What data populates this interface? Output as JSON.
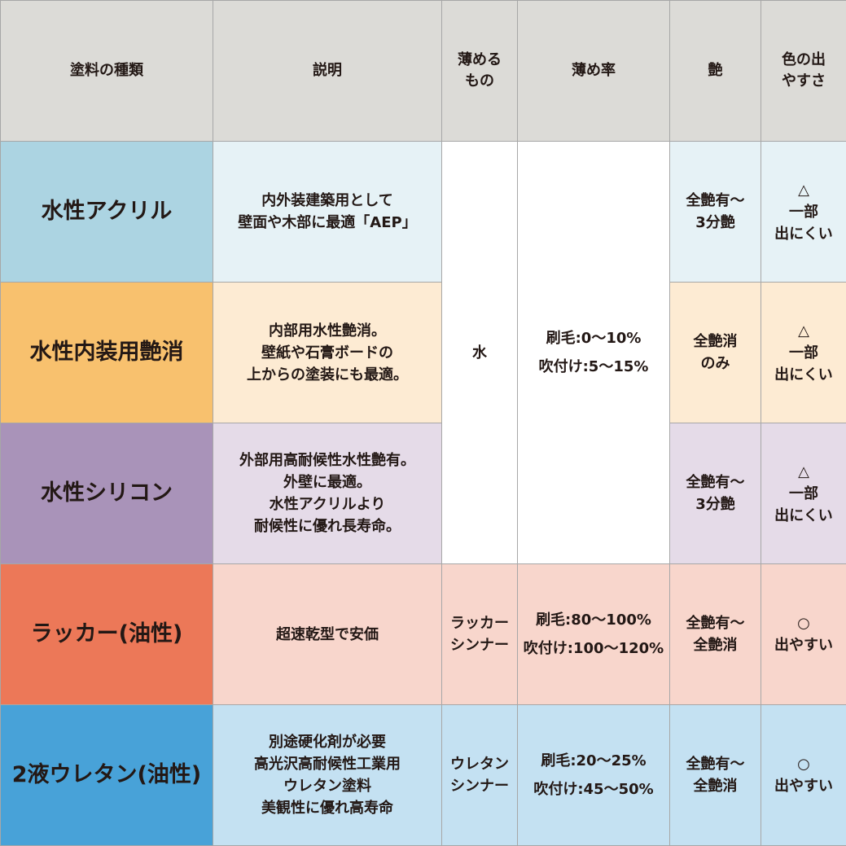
{
  "headers": [
    "塗料の種類",
    "説明",
    "薄める\nもの",
    "薄め率",
    "艶",
    "色の出\nやすさ"
  ],
  "colors": {
    "header_bg": "#dcdbd7",
    "rows": [
      {
        "type_bg": "#acd4e2",
        "cell_bg": "#e6f2f6"
      },
      {
        "type_bg": "#f8c16e",
        "cell_bg": "#fdebd3"
      },
      {
        "type_bg": "#a993b9",
        "cell_bg": "#e5dbe8"
      },
      {
        "type_bg": "#ec7858",
        "cell_bg": "#f8d6cc"
      },
      {
        "type_bg": "#48a2d8",
        "cell_bg": "#c4e1f2"
      }
    ]
  },
  "shared_water": {
    "thinner": "水",
    "rate": "刷毛:0〜10%\n吹付け:5〜15%"
  },
  "rows": [
    {
      "type": "水性アクリル",
      "description": "内外装建築用として\n壁面や木部に最適「AEP」",
      "gloss": "全艶有〜\n3分艶",
      "color_ease": "△\n一部\n出にくい"
    },
    {
      "type": "水性内装用艶消",
      "description": "内部用水性艶消。\n壁紙や石膏ボードの\n上からの塗装にも最適。",
      "gloss": "全艶消\nのみ",
      "color_ease": "△\n一部\n出にくい"
    },
    {
      "type": "水性シリコン",
      "description": "外部用高耐候性水性艶有。\n外壁に最適。\n水性アクリルより\n耐候性に優れ長寿命。",
      "gloss": "全艶有〜\n3分艶",
      "color_ease": "△\n一部\n出にくい"
    },
    {
      "type": "ラッカー(油性)",
      "description": "超速乾型で安価",
      "thinner": "ラッカー\nシンナー",
      "rate": "刷毛:80〜100%\n吹付け:100〜120%",
      "gloss": "全艶有〜\n全艶消",
      "color_ease": "○\n出やすい"
    },
    {
      "type": "2液ウレタン(油性)",
      "description": "別途硬化剤が必要\n高光沢高耐候性工業用\nウレタン塗料\n美観性に優れ高寿命",
      "thinner": "ウレタン\nシンナー",
      "rate": "刷毛:20〜25%\n吹付け:45〜50%",
      "gloss": "全艶有〜\n全艶消",
      "color_ease": "○\n出やすい"
    }
  ]
}
